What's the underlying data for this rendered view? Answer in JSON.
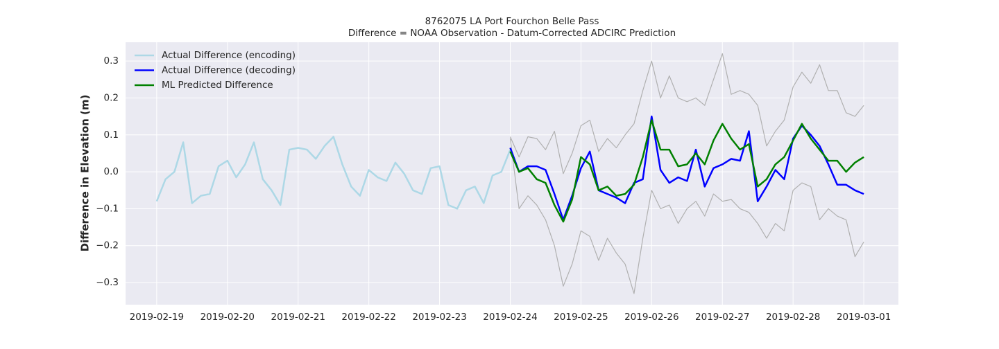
{
  "chart_data": {
    "type": "line",
    "title": "8762075 LA Port Fourchon Belle Pass",
    "subtitle": "Difference = NOAA Observation - Datum-Corrected ADCIRC Prediction",
    "y_label": "Difference in Elevation (m)",
    "xlim": [
      "2019-02-18 13:26",
      "2019-03-01 11:45"
    ],
    "xticks": [
      "2019-02-19",
      "2019-02-20",
      "2019-02-21",
      "2019-02-22",
      "2019-02-23",
      "2019-02-24",
      "2019-02-25",
      "2019-02-26",
      "2019-02-27",
      "2019-02-28",
      "2019-03-01"
    ],
    "ylim": [
      -0.36,
      0.351
    ],
    "yticks": [
      {
        "value": -0.3,
        "label": "−0.3"
      },
      {
        "value": -0.2,
        "label": "−0.2"
      },
      {
        "value": -0.1,
        "label": "−0.1"
      },
      {
        "value": 0,
        "label": "0.0"
      },
      0.1,
      0.2,
      0.3
    ],
    "grid": true,
    "legend": "upper left",
    "series": [
      {
        "name": "Actual Difference (encoding)",
        "color": "#add8e6",
        "width": 2.5,
        "x": [
          "2019-02-19 00:00",
          "2019-02-19 03:00",
          "2019-02-19 06:00",
          "2019-02-19 09:00",
          "2019-02-19 12:00",
          "2019-02-19 15:00",
          "2019-02-19 18:00",
          "2019-02-19 21:00",
          "2019-02-20 00:00",
          "2019-02-20 03:00",
          "2019-02-20 06:00",
          "2019-02-20 09:00",
          "2019-02-20 12:00",
          "2019-02-20 15:00",
          "2019-02-20 18:00",
          "2019-02-20 21:00",
          "2019-02-21 00:00",
          "2019-02-21 03:00",
          "2019-02-21 06:00",
          "2019-02-21 09:00",
          "2019-02-21 12:00",
          "2019-02-21 15:00",
          "2019-02-21 18:00",
          "2019-02-21 21:00",
          "2019-02-22 00:00",
          "2019-02-22 03:00",
          "2019-02-22 06:00",
          "2019-02-22 09:00",
          "2019-02-22 12:00",
          "2019-02-22 15:00",
          "2019-02-22 18:00",
          "2019-02-22 21:00",
          "2019-02-23 00:00",
          "2019-02-23 03:00",
          "2019-02-23 06:00",
          "2019-02-23 09:00",
          "2019-02-23 12:00",
          "2019-02-23 15:00",
          "2019-02-23 18:00",
          "2019-02-23 21:00",
          "2019-02-24 00:00"
        ],
        "values": [
          -0.08,
          -0.02,
          0.0,
          0.08,
          -0.085,
          -0.065,
          -0.06,
          0.015,
          0.03,
          -0.015,
          0.02,
          0.08,
          -0.02,
          -0.05,
          -0.09,
          0.06,
          0.065,
          0.06,
          0.035,
          0.07,
          0.095,
          0.02,
          -0.04,
          -0.065,
          0.005,
          -0.015,
          -0.025,
          0.025,
          -0.005,
          -0.05,
          -0.06,
          0.01,
          0.015,
          -0.09,
          -0.1,
          -0.05,
          -0.04,
          -0.085,
          -0.01,
          0.0,
          0.06
        ]
      },
      {
        "name": "Actual Difference (decoding)",
        "color": "#0000ff",
        "width": 2.5,
        "x": [
          "2019-02-24 00:00",
          "2019-02-24 03:00",
          "2019-02-24 06:00",
          "2019-02-24 09:00",
          "2019-02-24 12:00",
          "2019-02-24 15:00",
          "2019-02-24 18:00",
          "2019-02-24 21:00",
          "2019-02-25 00:00",
          "2019-02-25 03:00",
          "2019-02-25 06:00",
          "2019-02-25 09:00",
          "2019-02-25 12:00",
          "2019-02-25 15:00",
          "2019-02-25 18:00",
          "2019-02-25 21:00",
          "2019-02-26 00:00",
          "2019-02-26 03:00",
          "2019-02-26 06:00",
          "2019-02-26 09:00",
          "2019-02-26 12:00",
          "2019-02-26 15:00",
          "2019-02-26 18:00",
          "2019-02-26 21:00",
          "2019-02-27 00:00",
          "2019-02-27 03:00",
          "2019-02-27 06:00",
          "2019-02-27 09:00",
          "2019-02-27 12:00",
          "2019-02-27 15:00",
          "2019-02-27 18:00",
          "2019-02-27 21:00",
          "2019-02-28 00:00",
          "2019-02-28 03:00",
          "2019-02-28 06:00",
          "2019-02-28 09:00",
          "2019-02-28 12:00",
          "2019-02-28 15:00",
          "2019-02-28 18:00",
          "2019-02-28 21:00",
          "2019-03-01 00:00"
        ],
        "values": [
          0.065,
          0.0,
          0.015,
          0.015,
          0.005,
          -0.06,
          -0.13,
          -0.065,
          0.01,
          0.055,
          -0.05,
          -0.06,
          -0.07,
          -0.085,
          -0.03,
          -0.02,
          0.15,
          0.005,
          -0.03,
          -0.015,
          -0.025,
          0.06,
          -0.04,
          0.01,
          0.02,
          0.035,
          0.03,
          0.11,
          -0.08,
          -0.04,
          0.005,
          -0.02,
          0.09,
          0.125,
          0.1,
          0.07,
          0.02,
          -0.035,
          -0.035,
          -0.05,
          -0.06
        ]
      },
      {
        "name": "ML Predicted Difference",
        "color": "#008000",
        "width": 2.5,
        "x": [
          "2019-02-24 00:00",
          "2019-02-24 03:00",
          "2019-02-24 06:00",
          "2019-02-24 09:00",
          "2019-02-24 12:00",
          "2019-02-24 15:00",
          "2019-02-24 18:00",
          "2019-02-24 21:00",
          "2019-02-25 00:00",
          "2019-02-25 03:00",
          "2019-02-25 06:00",
          "2019-02-25 09:00",
          "2019-02-25 12:00",
          "2019-02-25 15:00",
          "2019-02-25 18:00",
          "2019-02-25 21:00",
          "2019-02-26 00:00",
          "2019-02-26 03:00",
          "2019-02-26 06:00",
          "2019-02-26 09:00",
          "2019-02-26 12:00",
          "2019-02-26 15:00",
          "2019-02-26 18:00",
          "2019-02-26 21:00",
          "2019-02-27 00:00",
          "2019-02-27 03:00",
          "2019-02-27 06:00",
          "2019-02-27 09:00",
          "2019-02-27 12:00",
          "2019-02-27 15:00",
          "2019-02-27 18:00",
          "2019-02-27 21:00",
          "2019-02-28 00:00",
          "2019-02-28 03:00",
          "2019-02-28 06:00",
          "2019-02-28 09:00",
          "2019-02-28 12:00",
          "2019-02-28 15:00",
          "2019-02-28 18:00",
          "2019-02-28 21:00",
          "2019-03-01 00:00"
        ],
        "values": [
          0.055,
          0.0,
          0.01,
          -0.02,
          -0.03,
          -0.09,
          -0.135,
          -0.075,
          0.04,
          0.02,
          -0.05,
          -0.04,
          -0.065,
          -0.06,
          -0.035,
          0.04,
          0.14,
          0.06,
          0.06,
          0.015,
          0.02,
          0.05,
          0.02,
          0.085,
          0.13,
          0.09,
          0.06,
          0.075,
          -0.04,
          -0.02,
          0.02,
          0.04,
          0.085,
          0.13,
          0.09,
          0.06,
          0.03,
          0.03,
          0.0,
          0.025,
          0.04
        ]
      },
      {
        "color": "#b0b0b0",
        "width": 1.2,
        "x": [
          "2019-02-24 00:00",
          "2019-02-24 03:00",
          "2019-02-24 06:00",
          "2019-02-24 09:00",
          "2019-02-24 12:00",
          "2019-02-24 15:00",
          "2019-02-24 18:00",
          "2019-02-24 21:00",
          "2019-02-25 00:00",
          "2019-02-25 03:00",
          "2019-02-25 06:00",
          "2019-02-25 09:00",
          "2019-02-25 12:00",
          "2019-02-25 15:00",
          "2019-02-25 18:00",
          "2019-02-25 21:00",
          "2019-02-26 00:00",
          "2019-02-26 03:00",
          "2019-02-26 06:00",
          "2019-02-26 09:00",
          "2019-02-26 12:00",
          "2019-02-26 15:00",
          "2019-02-26 18:00",
          "2019-02-26 21:00",
          "2019-02-27 00:00",
          "2019-02-27 03:00",
          "2019-02-27 06:00",
          "2019-02-27 09:00",
          "2019-02-27 12:00",
          "2019-02-27 15:00",
          "2019-02-27 18:00",
          "2019-02-27 21:00",
          "2019-02-28 00:00",
          "2019-02-28 03:00",
          "2019-02-28 06:00",
          "2019-02-28 09:00",
          "2019-02-28 12:00",
          "2019-02-28 15:00",
          "2019-02-28 18:00",
          "2019-02-28 21:00",
          "2019-03-01 00:00"
        ],
        "values": [
          0.095,
          0.04,
          0.095,
          0.09,
          0.06,
          0.11,
          -0.005,
          0.05,
          0.125,
          0.14,
          0.055,
          0.09,
          0.065,
          0.1,
          0.13,
          0.22,
          0.3,
          0.2,
          0.26,
          0.2,
          0.19,
          0.2,
          0.18,
          0.25,
          0.32,
          0.21,
          0.22,
          0.21,
          0.18,
          0.07,
          0.11,
          0.14,
          0.23,
          0.27,
          0.24,
          0.29,
          0.22,
          0.22,
          0.16,
          0.15,
          0.18
        ]
      },
      {
        "color": "#b0b0b0",
        "width": 1.2,
        "x": [
          "2019-02-24 00:00",
          "2019-02-24 03:00",
          "2019-02-24 06:00",
          "2019-02-24 09:00",
          "2019-02-24 12:00",
          "2019-02-24 15:00",
          "2019-02-24 18:00",
          "2019-02-24 21:00",
          "2019-02-25 00:00",
          "2019-02-25 03:00",
          "2019-02-25 06:00",
          "2019-02-25 09:00",
          "2019-02-25 12:00",
          "2019-02-25 15:00",
          "2019-02-25 18:00",
          "2019-02-25 21:00",
          "2019-02-26 00:00",
          "2019-02-26 03:00",
          "2019-02-26 06:00",
          "2019-02-26 09:00",
          "2019-02-26 12:00",
          "2019-02-26 15:00",
          "2019-02-26 18:00",
          "2019-02-26 21:00",
          "2019-02-27 00:00",
          "2019-02-27 03:00",
          "2019-02-27 06:00",
          "2019-02-27 09:00",
          "2019-02-27 12:00",
          "2019-02-27 15:00",
          "2019-02-27 18:00",
          "2019-02-27 21:00",
          "2019-02-28 00:00",
          "2019-02-28 03:00",
          "2019-02-28 06:00",
          "2019-02-28 09:00",
          "2019-02-28 12:00",
          "2019-02-28 15:00",
          "2019-02-28 18:00",
          "2019-02-28 21:00",
          "2019-03-01 00:00"
        ],
        "values": [
          0.09,
          -0.1,
          -0.065,
          -0.09,
          -0.13,
          -0.2,
          -0.31,
          -0.25,
          -0.16,
          -0.175,
          -0.24,
          -0.18,
          -0.22,
          -0.25,
          -0.33,
          -0.18,
          -0.05,
          -0.1,
          -0.09,
          -0.14,
          -0.1,
          -0.08,
          -0.12,
          -0.06,
          -0.08,
          -0.075,
          -0.1,
          -0.11,
          -0.14,
          -0.18,
          -0.14,
          -0.16,
          -0.05,
          -0.03,
          -0.04,
          -0.13,
          -0.1,
          -0.12,
          -0.13,
          -0.23,
          -0.19
        ]
      }
    ]
  }
}
